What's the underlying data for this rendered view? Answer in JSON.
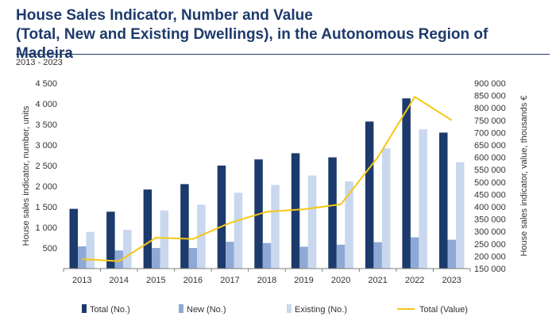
{
  "title_line1": "House Sales Indicator, Number and Value",
  "title_line2": "(Total, New and Existing Dwellings), in the Autonomous Region of Madeira",
  "subtitle": "2013 - 2023",
  "colors": {
    "total": "#1c3a6b",
    "new": "#8ea9d6",
    "existing": "#c9d8ef",
    "value_line": "#f5c816",
    "axis_text": "#333333"
  },
  "chart_data": {
    "type": "bar",
    "categories": [
      "2013",
      "2014",
      "2015",
      "2016",
      "2017",
      "2018",
      "2019",
      "2020",
      "2021",
      "2022",
      "2023"
    ],
    "series": [
      {
        "name": "Total (No.)",
        "type": "bar",
        "axis": "left",
        "values": [
          1450,
          1380,
          1920,
          2050,
          2500,
          2650,
          2800,
          2700,
          3570,
          4130,
          3300
        ]
      },
      {
        "name": "New (No.)",
        "type": "bar",
        "axis": "left",
        "values": [
          540,
          440,
          500,
          500,
          650,
          620,
          530,
          580,
          640,
          760,
          700
        ]
      },
      {
        "name": "Existing (No.)",
        "type": "bar",
        "axis": "left",
        "values": [
          890,
          940,
          1410,
          1550,
          1840,
          2030,
          2260,
          2120,
          2920,
          3380,
          2580
        ]
      },
      {
        "name": "Total (Value)",
        "type": "line",
        "axis": "right",
        "values": [
          188000,
          180000,
          275000,
          270000,
          335000,
          380000,
          390000,
          410000,
          600000,
          845000,
          750000
        ]
      }
    ],
    "ylabel": "House sales indicator, number, units",
    "y2label": "House sales indicator, value, thousands €",
    "ylim": [
      0,
      4500
    ],
    "y2lim": [
      150000,
      900000
    ],
    "yticks": [
      500,
      1000,
      1500,
      2000,
      2500,
      3000,
      3500,
      4000,
      4500
    ],
    "ytick_labels": [
      "500",
      "1 000",
      "1 500",
      "2 000",
      "2 500",
      "3 000",
      "3 500",
      "4 000",
      "4 500"
    ],
    "y2ticks": [
      150000,
      200000,
      250000,
      300000,
      350000,
      400000,
      450000,
      500000,
      550000,
      600000,
      650000,
      700000,
      750000,
      800000,
      850000,
      900000
    ],
    "y2tick_labels": [
      "150 000",
      "200 000",
      "250 000",
      "300 000",
      "350 000",
      "400 000",
      "450 000",
      "500 000",
      "550 000",
      "600 000",
      "650 000",
      "700 000",
      "750 000",
      "800 000",
      "850 000",
      "900 000"
    ],
    "grid": false,
    "legend_position": "bottom"
  }
}
